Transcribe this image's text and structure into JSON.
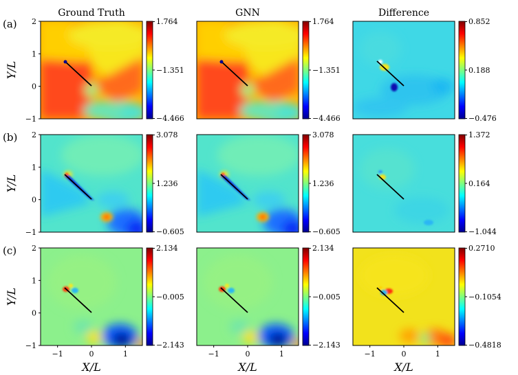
{
  "column_titles": [
    "Ground Truth",
    "GNN",
    "Difference"
  ],
  "row_labels": [
    "(a)",
    "(b)",
    "(c)"
  ],
  "x_axis_label": "X/L",
  "y_axis_label": "Y/L",
  "x_ticks": [
    "−1",
    "0",
    "1"
  ],
  "y_ticks": [
    "−1",
    "0",
    "1",
    "2"
  ],
  "colormap": "jet",
  "rows": [
    {
      "label": "(a)",
      "field_scale": [
        "1.764",
        "−1.351",
        "−4.466"
      ],
      "difference_scale": [
        "0.852",
        "0.188",
        "−0.476"
      ]
    },
    {
      "label": "(b)",
      "field_scale": [
        "3.078",
        "1.236",
        "−0.605"
      ],
      "difference_scale": [
        "1.372",
        "0.164",
        "−1.044"
      ]
    },
    {
      "label": "(c)",
      "field_scale": [
        "2.134",
        "−0.005",
        "−2.143"
      ],
      "difference_scale": [
        "0.2710",
        "−0.1054",
        "−0.4818"
      ]
    }
  ],
  "colors": {
    "background_cyan": "#3cd9e0",
    "warm_red": "#ff4a1c",
    "yellow": "#f2e21d",
    "deep_blue": "#00008f"
  }
}
